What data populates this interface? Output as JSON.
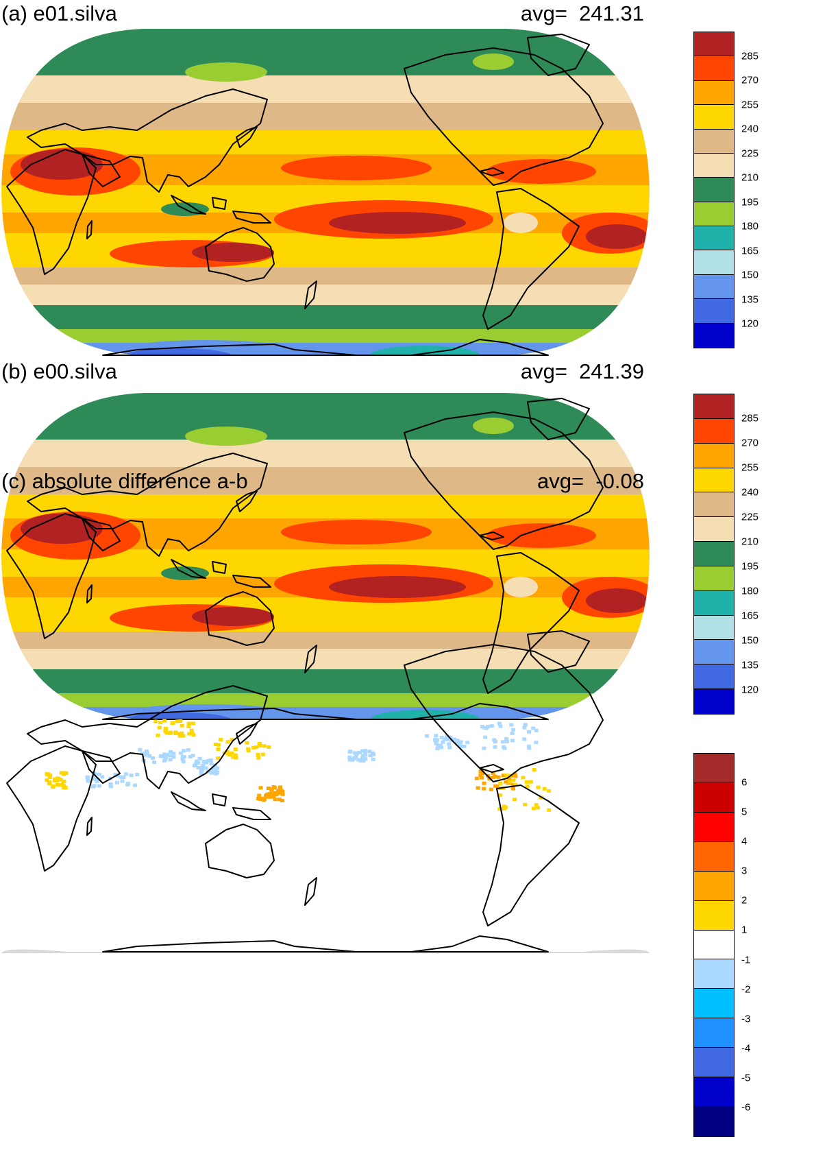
{
  "panels": [
    {
      "title": "(a) e01.silva",
      "avg_label": "avg=",
      "avg_value": "241.31",
      "map_type": "field",
      "colorbar": {
        "labels": [
          "285",
          "270",
          "255",
          "240",
          "225",
          "210",
          "195",
          "180",
          "165",
          "150",
          "135",
          "120"
        ],
        "colors": [
          "#b22222",
          "#ff4500",
          "#ffa500",
          "#ffd700",
          "#deb887",
          "#f5deb3",
          "#2e8b57",
          "#9acd32",
          "#20b2aa",
          "#b0e0e6",
          "#6495ed",
          "#4169e1",
          "#0000cd"
        ]
      }
    },
    {
      "title": "(b) e00.silva",
      "avg_label": "avg=",
      "avg_value": "241.39",
      "map_type": "field",
      "colorbar": {
        "labels": [
          "285",
          "270",
          "255",
          "240",
          "225",
          "210",
          "195",
          "180",
          "165",
          "150",
          "135",
          "120"
        ],
        "colors": [
          "#b22222",
          "#ff4500",
          "#ffa500",
          "#ffd700",
          "#deb887",
          "#f5deb3",
          "#2e8b57",
          "#9acd32",
          "#20b2aa",
          "#b0e0e6",
          "#6495ed",
          "#4169e1",
          "#0000cd"
        ]
      }
    },
    {
      "title": "(c) absolute difference a-b",
      "avg_label": "avg=",
      "avg_value": "-0.08",
      "map_type": "difference",
      "colorbar": {
        "labels": [
          "6",
          "5",
          "4",
          "3",
          "2",
          "1",
          "-1",
          "-2",
          "-3",
          "-4",
          "-5",
          "-6"
        ],
        "colors": [
          "#a52a2a",
          "#cd0000",
          "#ff0000",
          "#ff6600",
          "#ffa500",
          "#ffd700",
          "#ffffff",
          "#aad8ff",
          "#00bfff",
          "#1e90ff",
          "#4169e1",
          "#0000cd",
          "#000080"
        ]
      }
    }
  ]
}
